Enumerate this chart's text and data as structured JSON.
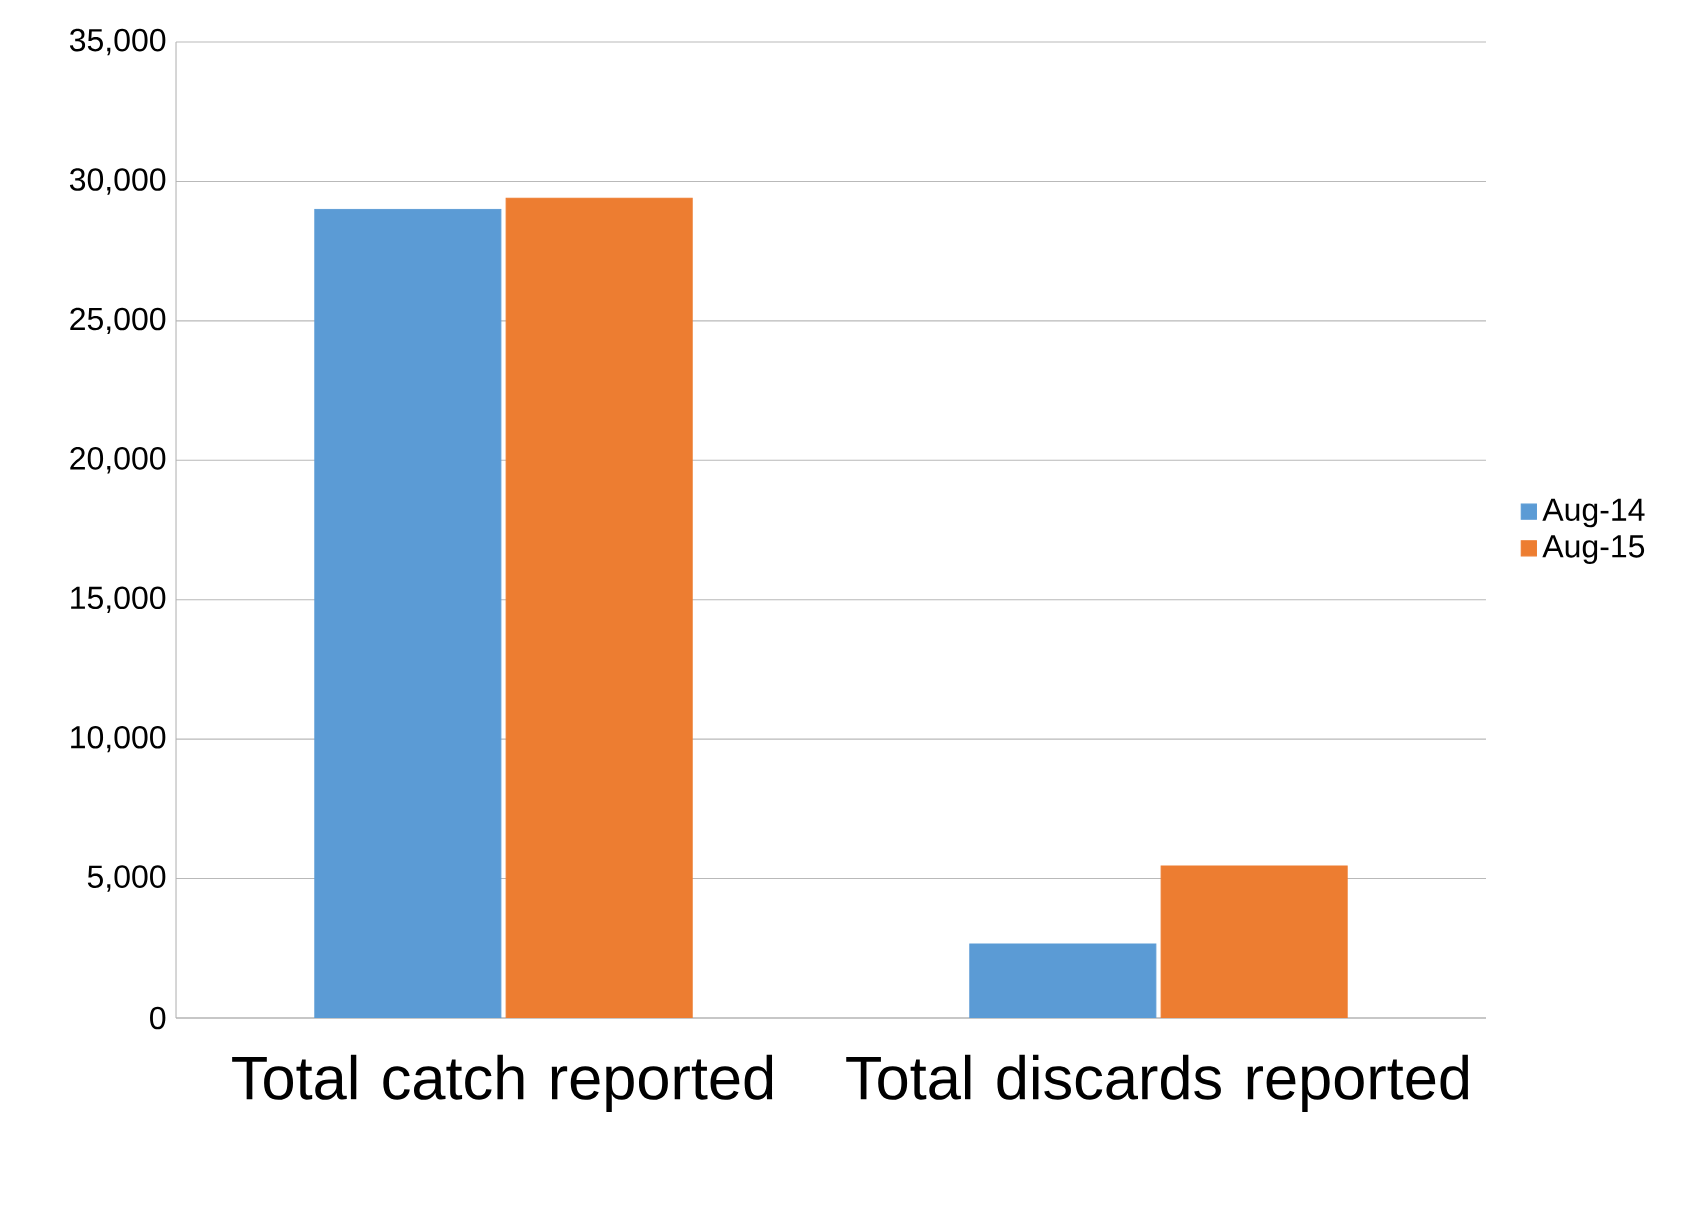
{
  "chart_data": {
    "type": "bar",
    "categories": [
      "Total catch reported",
      "Total discards reported"
    ],
    "series": [
      {
        "name": "Aug-14",
        "color": "#5b9bd5",
        "values": [
          29000,
          2650
        ]
      },
      {
        "name": "Aug-15",
        "color": "#ed7d31",
        "values": [
          29400,
          5450
        ]
      }
    ],
    "ylim": [
      0,
      35000
    ],
    "yticks": [
      {
        "value": 0,
        "label": "0"
      },
      {
        "value": 5000,
        "label": "5,000"
      },
      {
        "value": 10000,
        "label": "10,000"
      },
      {
        "value": 15000,
        "label": "15,000"
      },
      {
        "value": 20000,
        "label": "20,000"
      },
      {
        "value": 25000,
        "label": "25,000"
      },
      {
        "value": 30000,
        "label": "30,000"
      },
      {
        "value": 35000,
        "label": "35,000"
      }
    ],
    "grid": "y",
    "legend": "right"
  }
}
